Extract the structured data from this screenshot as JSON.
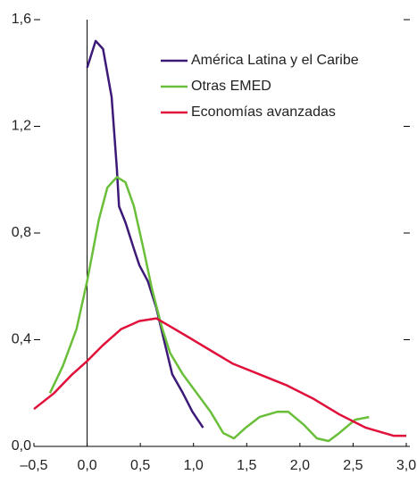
{
  "chart_data": {
    "type": "line",
    "xlim": [
      -0.5,
      3.0
    ],
    "ylim": [
      0,
      1.6
    ],
    "xticks": [
      {
        "value": -0.5,
        "label": "–0,5"
      },
      {
        "value": 0,
        "label": "0,0"
      },
      {
        "value": 0.5,
        "label": "0,5"
      },
      {
        "value": 1.0,
        "label": "1,0"
      },
      {
        "value": 1.5,
        "label": "1,5"
      },
      {
        "value": 2.0,
        "label": "2,0"
      },
      {
        "value": 2.5,
        "label": "2,5"
      },
      {
        "value": 3.0,
        "label": "3,0"
      }
    ],
    "yticks": [
      {
        "value": 0,
        "label": "0,0"
      },
      {
        "value": 0.4,
        "label": "0,4"
      },
      {
        "value": 0.8,
        "label": "0,8"
      },
      {
        "value": 1.2,
        "label": "1,2"
      },
      {
        "value": 1.6,
        "label": "1,6"
      }
    ],
    "series": [
      {
        "name": "América Latina y el Caribe",
        "color": "#3d1a78",
        "x": [
          0.0,
          0.08,
          0.15,
          0.23,
          0.28,
          0.3,
          0.36,
          0.44,
          0.49,
          0.57,
          0.65,
          0.74,
          0.8,
          0.9,
          0.99,
          1.09
        ],
        "values": [
          1.42,
          1.52,
          1.49,
          1.31,
          1.04,
          0.9,
          0.84,
          0.74,
          0.68,
          0.62,
          0.52,
          0.37,
          0.27,
          0.2,
          0.13,
          0.07
        ]
      },
      {
        "name": "Otras EMED",
        "color": "#6abf3a",
        "x": [
          -0.35,
          -0.23,
          -0.1,
          0.0,
          0.11,
          0.19,
          0.28,
          0.36,
          0.44,
          0.53,
          0.61,
          0.7,
          0.78,
          0.9,
          1.03,
          1.16,
          1.28,
          1.38,
          1.49,
          1.62,
          1.79,
          1.89,
          2.04,
          2.16,
          2.27,
          2.37,
          2.52,
          2.65
        ],
        "values": [
          0.2,
          0.3,
          0.44,
          0.62,
          0.85,
          0.97,
          1.01,
          0.99,
          0.9,
          0.74,
          0.59,
          0.45,
          0.35,
          0.27,
          0.2,
          0.13,
          0.05,
          0.03,
          0.07,
          0.11,
          0.13,
          0.13,
          0.08,
          0.03,
          0.02,
          0.05,
          0.1,
          0.11
        ]
      },
      {
        "name": "Economías avanzadas",
        "color": "#e0103a",
        "x": [
          -0.5,
          -0.31,
          -0.14,
          0.0,
          0.15,
          0.32,
          0.49,
          0.65,
          0.78,
          0.95,
          1.16,
          1.37,
          1.62,
          1.87,
          2.12,
          2.37,
          2.62,
          2.88,
          3.0
        ],
        "values": [
          0.14,
          0.2,
          0.27,
          0.32,
          0.38,
          0.44,
          0.47,
          0.48,
          0.45,
          0.41,
          0.36,
          0.31,
          0.27,
          0.23,
          0.18,
          0.12,
          0.07,
          0.04,
          0.04
        ]
      }
    ]
  }
}
